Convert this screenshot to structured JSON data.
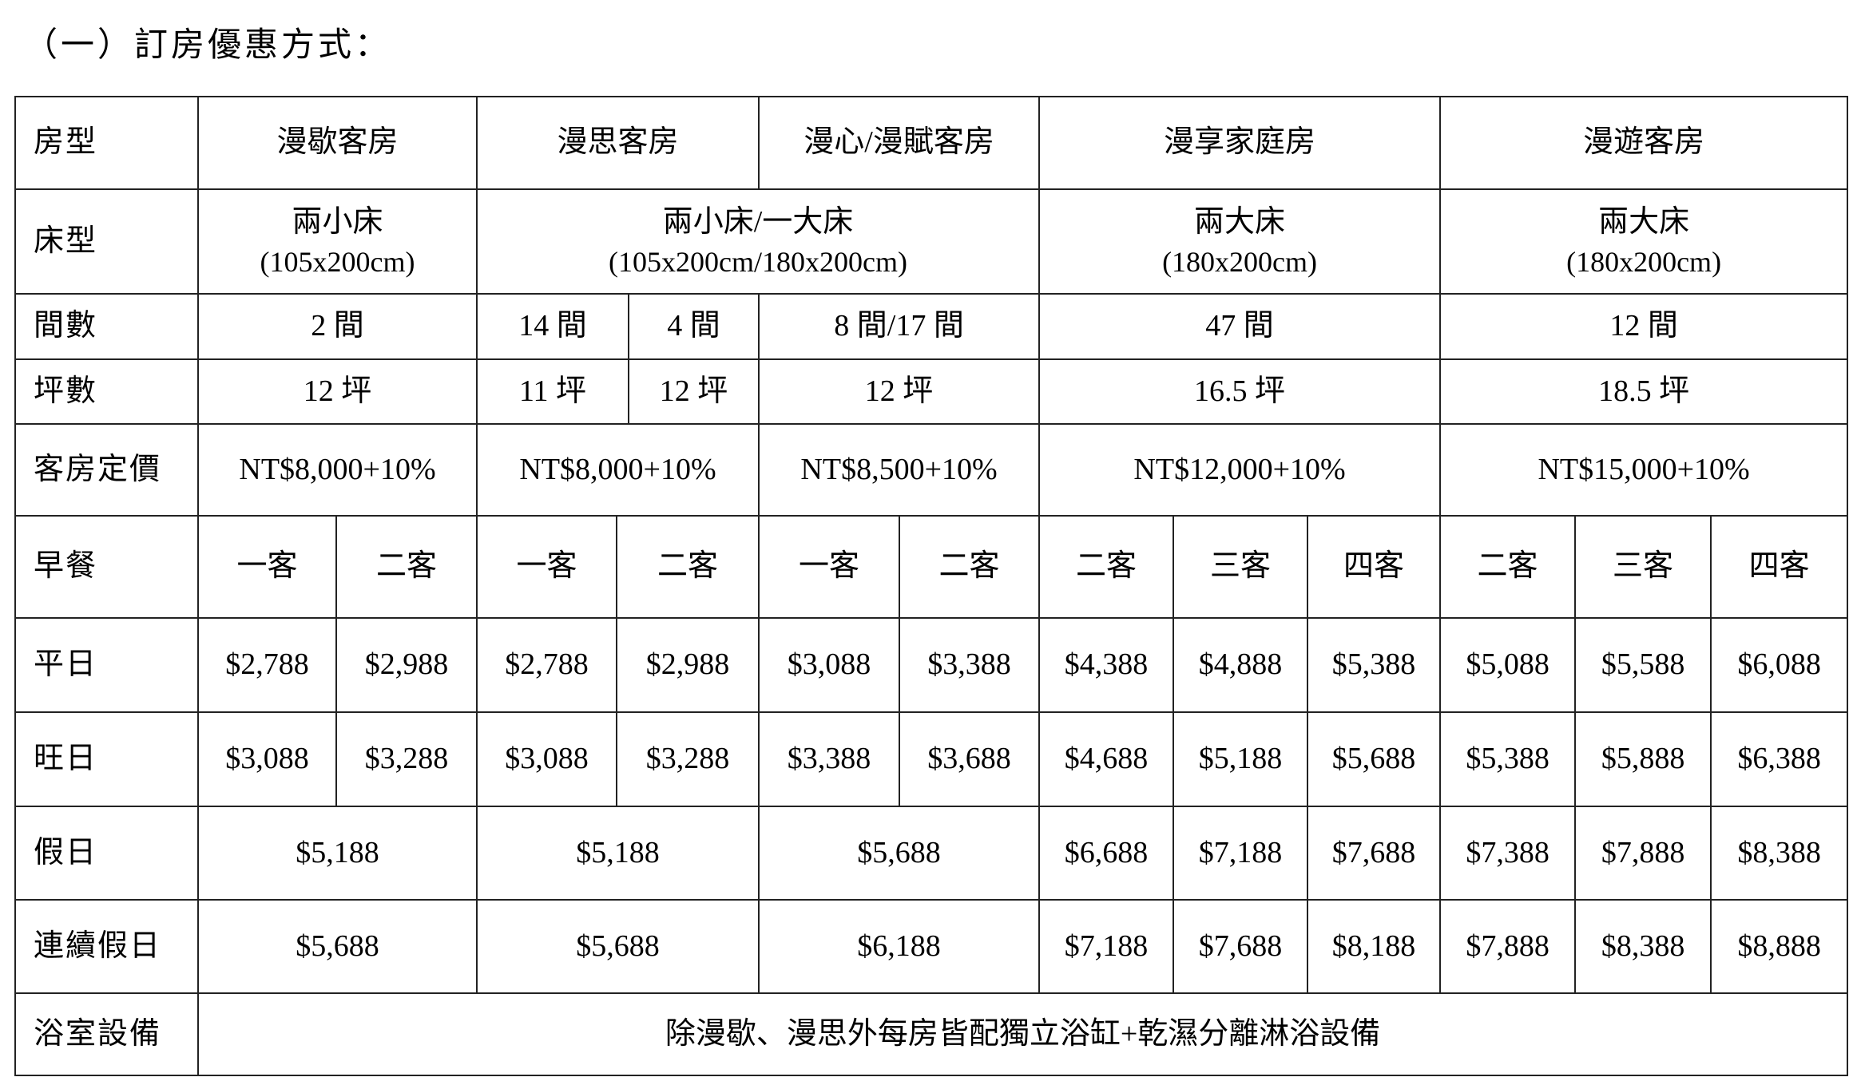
{
  "title": "（一）訂房優惠方式：",
  "labels": {
    "room_type": "房型",
    "bed_type": "床型",
    "rooms": "間數",
    "area": "坪數",
    "list_price": "客房定價",
    "breakfast": "早餐",
    "weekday": "平日",
    "peak_day": "旺日",
    "holiday": "假日",
    "long_holiday": "連續假日",
    "bathroom": "浴室設備"
  },
  "room_types": [
    "漫歇客房",
    "漫思客房",
    "漫心/漫賦客房",
    "漫享家庭房",
    "漫遊客房"
  ],
  "bed_types": [
    {
      "name": "兩小床",
      "size": "(105x200cm)"
    },
    {
      "name": "兩小床/一大床",
      "size": "(105x200cm/180x200cm)"
    },
    {
      "name": "兩大床",
      "size": "(180x200cm)"
    },
    {
      "name": "兩大床",
      "size": "(180x200cm)"
    }
  ],
  "rooms": [
    "2 間",
    "14 間",
    "4 間",
    "8 間/17 間",
    "47 間",
    "12 間"
  ],
  "area": [
    "12 坪",
    "11 坪",
    "12 坪",
    "12 坪",
    "16.5 坪",
    "18.5 坪"
  ],
  "list_price": [
    "NT$8,000+10%",
    "NT$8,000+10%",
    "NT$8,500+10%",
    "NT$12,000+10%",
    "NT$15,000+10%"
  ],
  "breakfast": [
    "一客",
    "二客",
    "一客",
    "二客",
    "一客",
    "二客",
    "二客",
    "三客",
    "四客",
    "二客",
    "三客",
    "四客"
  ],
  "weekday": [
    "$2,788",
    "$2,988",
    "$2,788",
    "$2,988",
    "$3,088",
    "$3,388",
    "$4,388",
    "$4,888",
    "$5,388",
    "$5,088",
    "$5,588",
    "$6,088"
  ],
  "peak_day": [
    "$3,088",
    "$3,288",
    "$3,088",
    "$3,288",
    "$3,388",
    "$3,688",
    "$4,688",
    "$5,188",
    "$5,688",
    "$5,388",
    "$5,888",
    "$6,388"
  ],
  "holiday": [
    "$5,188",
    "$5,188",
    "$5,688",
    "$6,688",
    "$7,188",
    "$7,688",
    "$7,388",
    "$7,888",
    "$8,388"
  ],
  "long_holiday": [
    "$5,688",
    "$5,688",
    "$6,188",
    "$7,188",
    "$7,688",
    "$8,188",
    "$7,888",
    "$8,388",
    "$8,888"
  ],
  "bathroom_note": "除漫歇、漫思外每房皆配獨立浴缸+乾濕分離淋浴設備"
}
